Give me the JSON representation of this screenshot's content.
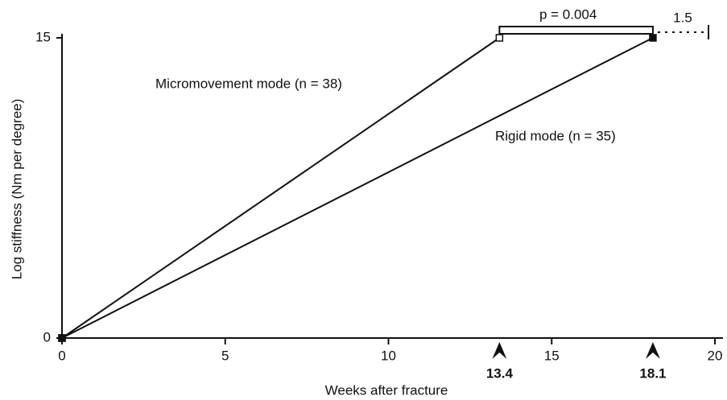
{
  "chart_data": {
    "type": "line",
    "xlabel": "Weeks after fracture",
    "ylabel": "Log stiffness (Nm per degree)",
    "series": [
      {
        "name": "Micromovement mode (n = 38)",
        "color": "#111111",
        "x": [
          0,
          13.4
        ],
        "values": [
          0,
          15
        ]
      },
      {
        "name": "Rigid mode (n = 35)",
        "color": "#111111",
        "x": [
          0,
          18.1
        ],
        "values": [
          0,
          15
        ]
      }
    ],
    "xlim": [
      0,
      20
    ],
    "xticks": [
      0,
      5,
      10,
      15,
      20
    ],
    "ylim": [
      0,
      15
    ],
    "yticks": [
      0,
      15
    ],
    "highlight_x": [
      13.4,
      18.1
    ],
    "annotations": [
      "p = 0.004",
      "1.5"
    ]
  }
}
